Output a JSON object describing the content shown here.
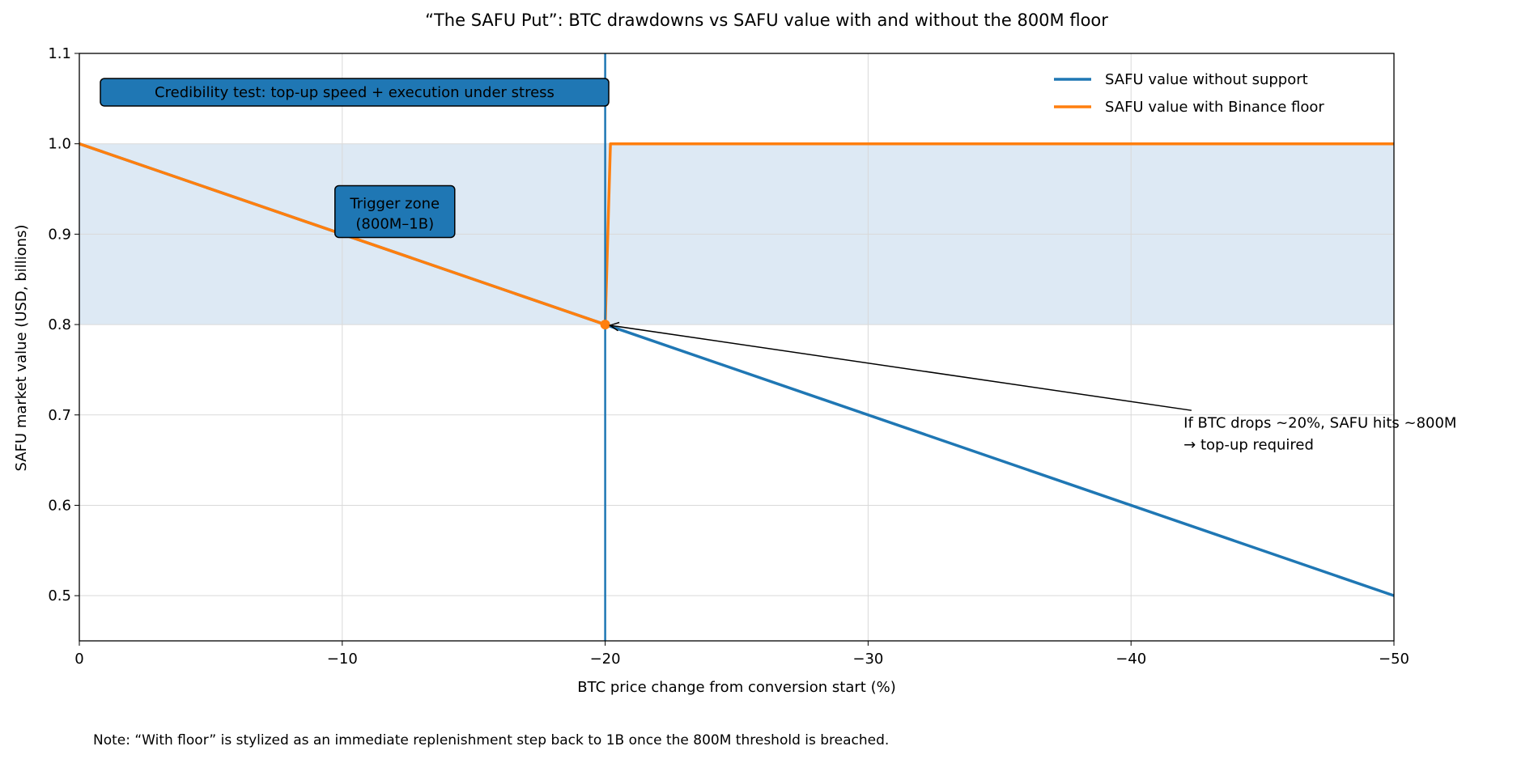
{
  "chart_data": {
    "type": "line",
    "title": "“The SAFU Put”: BTC drawdowns vs SAFU value with and without the 800M floor",
    "xlabel": "BTC price change from conversion start (%)",
    "ylabel": "SAFU market value (USD, billions)",
    "xlim": [
      0,
      -50
    ],
    "ylim": [
      0.45,
      1.1
    ],
    "xticks": [
      0,
      -10,
      -20,
      -30,
      -40,
      -50
    ],
    "xtick_labels": [
      "0",
      "−10",
      "−20",
      "−30",
      "−40",
      "−50"
    ],
    "yticks": [
      0.5,
      0.6,
      0.7,
      0.8,
      0.9,
      1.0,
      1.1
    ],
    "ytick_labels": [
      "0.5",
      "0.6",
      "0.7",
      "0.8",
      "0.9",
      "1.0",
      "1.1"
    ],
    "grid": true,
    "legend_placement": "upper-right",
    "series": [
      {
        "name": "SAFU value without support",
        "color": "#1f77b4",
        "x": [
          0,
          -50
        ],
        "y": [
          1.0,
          0.5
        ]
      },
      {
        "name": "SAFU value with Binance floor",
        "color": "#ff7f0e",
        "x": [
          0,
          -20,
          -20.2,
          -50
        ],
        "y": [
          1.0,
          0.8,
          1.0,
          1.0
        ]
      }
    ],
    "trigger_band": {
      "y0": 0.8,
      "y1": 1.0,
      "color": "#dde9f4"
    },
    "vertical_line": {
      "x": -20,
      "color": "#1f77b4"
    },
    "marker": {
      "x": -20,
      "y": 0.8,
      "color": "#ff7f0e"
    },
    "annotations": {
      "credibility": "Credibility test: top-up speed + execution under stress",
      "trigger_line1": "Trigger zone",
      "trigger_line2": "(800M–1B)",
      "arrow_line1": "If BTC drops ~20%, SAFU hits ~800M",
      "arrow_line2": "→ top-up required"
    },
    "box_color": "#1f77b4"
  },
  "note": "Note: “With floor” is stylized as an immediate replenishment step back to 1B once the 800M threshold is breached."
}
